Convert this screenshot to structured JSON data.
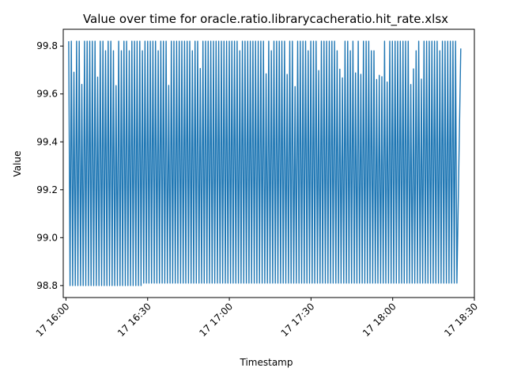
{
  "chart_data": {
    "type": "line",
    "title": "Value over time for oracle.ratio.librarycacheratio.hit_rate.xlsx",
    "xlabel": "Timestamp",
    "ylabel": "Value",
    "x_range": [
      "2024-01-17 15:59:00",
      "2024-01-17 18:30:00"
    ],
    "ylim": [
      98.75,
      99.87
    ],
    "x_ticks": [
      {
        "value": "2024-01-17 16:00:00",
        "label": "17 16:00"
      },
      {
        "value": "2024-01-17 16:30:00",
        "label": "17 16:30"
      },
      {
        "value": "2024-01-17 17:00:00",
        "label": "17 17:00"
      },
      {
        "value": "2024-01-17 17:30:00",
        "label": "17 17:30"
      },
      {
        "value": "2024-01-17 18:00:00",
        "label": "17 18:00"
      },
      {
        "value": "2024-01-17 18:30:00",
        "label": "17 18:30"
      }
    ],
    "y_ticks": [
      98.8,
      99.0,
      99.2,
      99.4,
      99.6,
      99.8
    ],
    "grid": false,
    "legend": "none",
    "series": [
      {
        "color": "#1f77b4",
        "pattern": "oscillating",
        "x_start": "2024-01-17 16:01:00",
        "x_end": "2024-01-17 18:24:00",
        "high_value": 99.82,
        "low_value_before_1628": 98.8,
        "low_value_after_1628": 98.81,
        "end_value": 99.79,
        "points_note": "value alternates roughly every minute between the high and low levels"
      }
    ]
  }
}
